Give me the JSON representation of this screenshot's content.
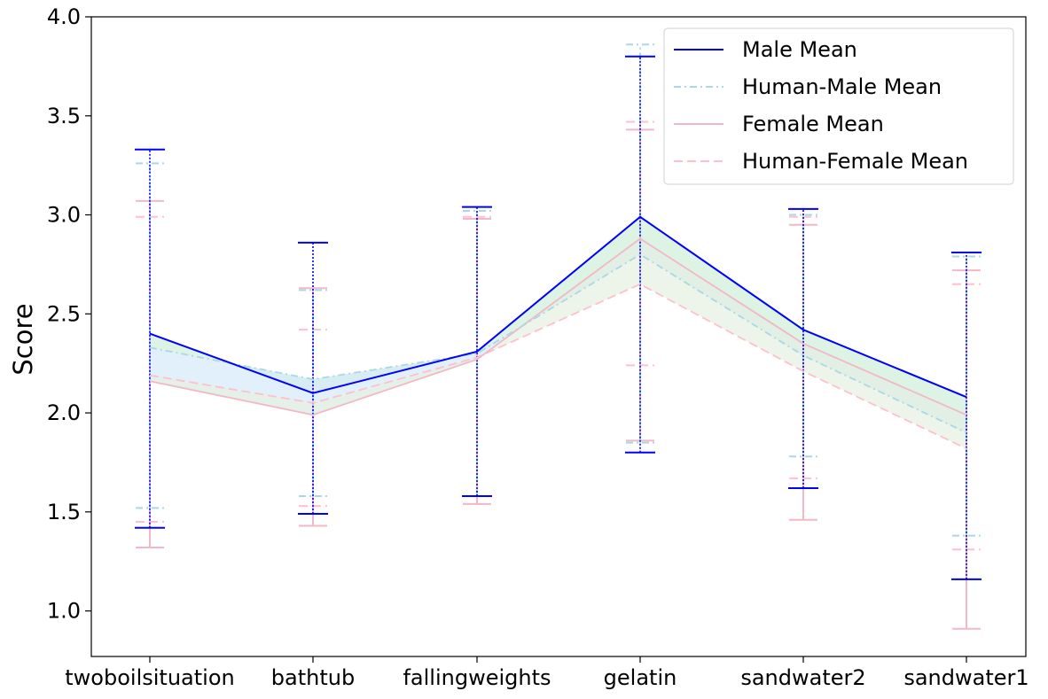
{
  "chart_data": {
    "type": "line",
    "title": "",
    "xlabel": "",
    "ylabel": "Score",
    "categories": [
      "twoboilsituation",
      "bathtub",
      "fallingweights",
      "gelatin",
      "sandwater2",
      "sandwater1"
    ],
    "ylim": [
      0.77,
      4.0
    ],
    "yticks": [
      "1.0",
      "1.5",
      "2.0",
      "2.5",
      "3.0",
      "3.5",
      "4.0"
    ],
    "grid": false,
    "legend_position": "upper right",
    "series": [
      {
        "name": "Male Mean",
        "color": "#0000ff",
        "style": "solid",
        "values": [
          2.4,
          2.1,
          2.31,
          2.99,
          2.42,
          2.08
        ],
        "err_low": [
          1.42,
          1.49,
          1.58,
          1.8,
          1.62,
          1.16
        ],
        "err_high": [
          3.33,
          2.86,
          3.04,
          3.8,
          3.03,
          2.81
        ]
      },
      {
        "name": "Human-Male Mean",
        "color": "#a8d8e8",
        "style": "dashdot",
        "values": [
          2.33,
          2.17,
          2.3,
          2.8,
          2.29,
          1.9
        ],
        "err_low": [
          1.52,
          1.58,
          1.58,
          1.85,
          1.78,
          1.38
        ],
        "err_high": [
          3.26,
          2.62,
          3.02,
          3.86,
          3.0,
          2.79
        ]
      },
      {
        "name": "Female Mean",
        "color": "#f2b8c6",
        "style": "solid",
        "values": [
          2.16,
          1.99,
          2.27,
          2.88,
          2.35,
          1.99
        ],
        "err_low": [
          1.32,
          1.43,
          1.54,
          1.86,
          1.46,
          0.91
        ],
        "err_high": [
          3.07,
          2.63,
          2.98,
          3.43,
          2.95,
          2.72
        ]
      },
      {
        "name": "Human-Female Mean",
        "color": "#ffc0cb",
        "style": "dashed",
        "values": [
          2.19,
          2.05,
          2.28,
          2.65,
          2.21,
          1.82
        ],
        "err_low": [
          1.45,
          1.53,
          1.54,
          2.24,
          1.67,
          1.31
        ],
        "err_high": [
          2.99,
          2.42,
          2.99,
          3.47,
          2.99,
          2.65
        ]
      }
    ]
  }
}
